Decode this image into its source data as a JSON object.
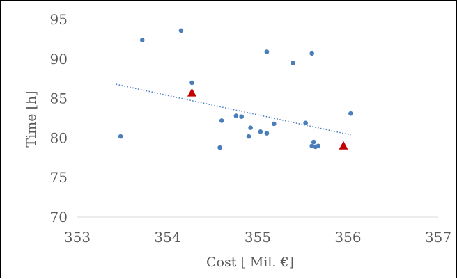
{
  "chart_data": {
    "type": "scatter",
    "title": "",
    "xlabel": "Cost [ Mil. €]",
    "ylabel": "Time [h]",
    "xlim": [
      353,
      357
    ],
    "ylim": [
      70,
      95
    ],
    "x_ticks": [
      "353",
      "354",
      "355",
      "356",
      "357"
    ],
    "y_ticks": [
      "70",
      "75",
      "80",
      "85",
      "90",
      "95"
    ],
    "grid": false,
    "legend": "none",
    "colors": {
      "points": "#4a7ebb",
      "highlight": "#c00000",
      "trend": "#4a7ebb",
      "axis": "#d9d9d9",
      "text": "#595959"
    },
    "series": [
      {
        "marker": "circle",
        "points": [
          [
            353.48,
            80.2
          ],
          [
            353.72,
            92.4
          ],
          [
            354.15,
            93.6
          ],
          [
            354.27,
            87.0
          ],
          [
            354.58,
            78.8
          ],
          [
            354.6,
            82.2
          ],
          [
            354.76,
            82.8
          ],
          [
            354.82,
            82.7
          ],
          [
            354.9,
            80.2
          ],
          [
            354.92,
            81.3
          ],
          [
            355.03,
            80.8
          ],
          [
            355.1,
            80.6
          ],
          [
            355.1,
            90.9
          ],
          [
            355.18,
            81.8
          ],
          [
            355.39,
            89.5
          ],
          [
            355.53,
            81.9
          ],
          [
            355.6,
            90.7
          ],
          [
            355.6,
            79.0
          ],
          [
            355.62,
            79.5
          ],
          [
            355.64,
            78.9
          ],
          [
            355.67,
            79.0
          ],
          [
            356.03,
            83.1
          ]
        ]
      },
      {
        "marker": "triangle",
        "points": [
          [
            354.27,
            85.7
          ],
          [
            355.95,
            79.0
          ]
        ]
      }
    ],
    "trendline": {
      "style": "dotted",
      "from": [
        353.43,
        86.8
      ],
      "to": [
        356.03,
        80.4
      ]
    }
  }
}
